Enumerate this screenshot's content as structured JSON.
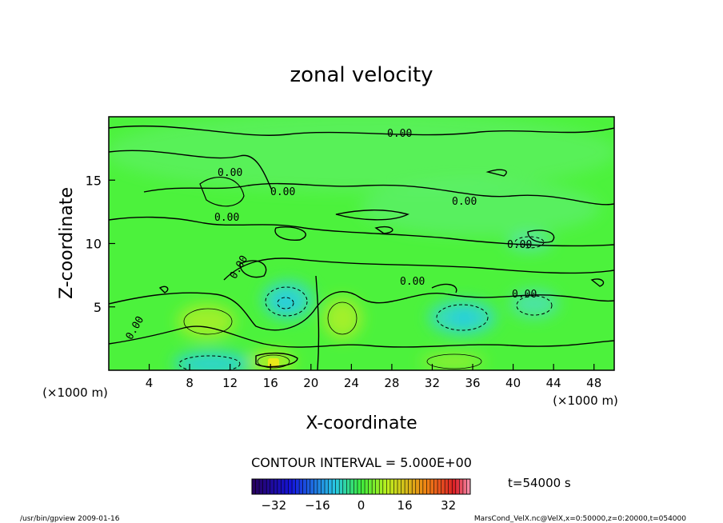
{
  "chart_data": {
    "type": "heatmap",
    "title": "zonal velocity",
    "xlabel": "X-coordinate",
    "ylabel": "Z-coordinate",
    "x_scale_note": "(×1000 m)",
    "z_scale_note": "(×1000 m)",
    "xlim": [
      0,
      50
    ],
    "ylim": [
      0,
      20
    ],
    "x_ticks": [
      4,
      8,
      12,
      16,
      20,
      24,
      28,
      32,
      36,
      40,
      44,
      48
    ],
    "y_ticks": [
      5,
      10,
      15
    ],
    "contour_interval_text": "CONTOUR INTERVAL = 5.000E+00",
    "time_text": "t=54000 s",
    "colorbar": {
      "ticks": [
        -32,
        -16,
        0,
        16,
        32
      ],
      "range": [
        -40,
        40
      ],
      "tick_labels": [
        "−32",
        "−16",
        "0",
        "16",
        "32"
      ]
    },
    "contour_labels": [
      "0.00",
      "0.00",
      "0.00",
      "0.00",
      "0.00",
      "0.00",
      "0.00",
      "0.00",
      "0.00",
      "0.00"
    ],
    "features": [
      {
        "kind": "min",
        "x": 17.5,
        "z": 5.3,
        "value": -8
      },
      {
        "kind": "min",
        "x": 34.5,
        "z": 4.0,
        "value": -7
      },
      {
        "kind": "min",
        "x": 10.5,
        "z": 0.5,
        "value": -8
      },
      {
        "kind": "min",
        "x": 42.0,
        "z": 4.8,
        "value": -5
      },
      {
        "kind": "min",
        "x": 41.5,
        "z": 10.0,
        "value": -4
      },
      {
        "kind": "max",
        "x": 9.5,
        "z": 4.0,
        "value": 5
      },
      {
        "kind": "max",
        "x": 22.5,
        "z": 4.5,
        "value": 4
      },
      {
        "kind": "max",
        "x": 16.0,
        "z": 1.2,
        "value": 6
      },
      {
        "kind": "max",
        "x": 35.0,
        "z": 1.0,
        "value": 4
      },
      {
        "kind": "max",
        "x": 17.0,
        "z": 0.3,
        "value": 10
      }
    ]
  },
  "footer": {
    "left": "/usr/bin/gpview   2009-01-16",
    "right": "MarsCond_VelX.nc@VelX,x=0:50000,z=0:20000,t=054000"
  }
}
